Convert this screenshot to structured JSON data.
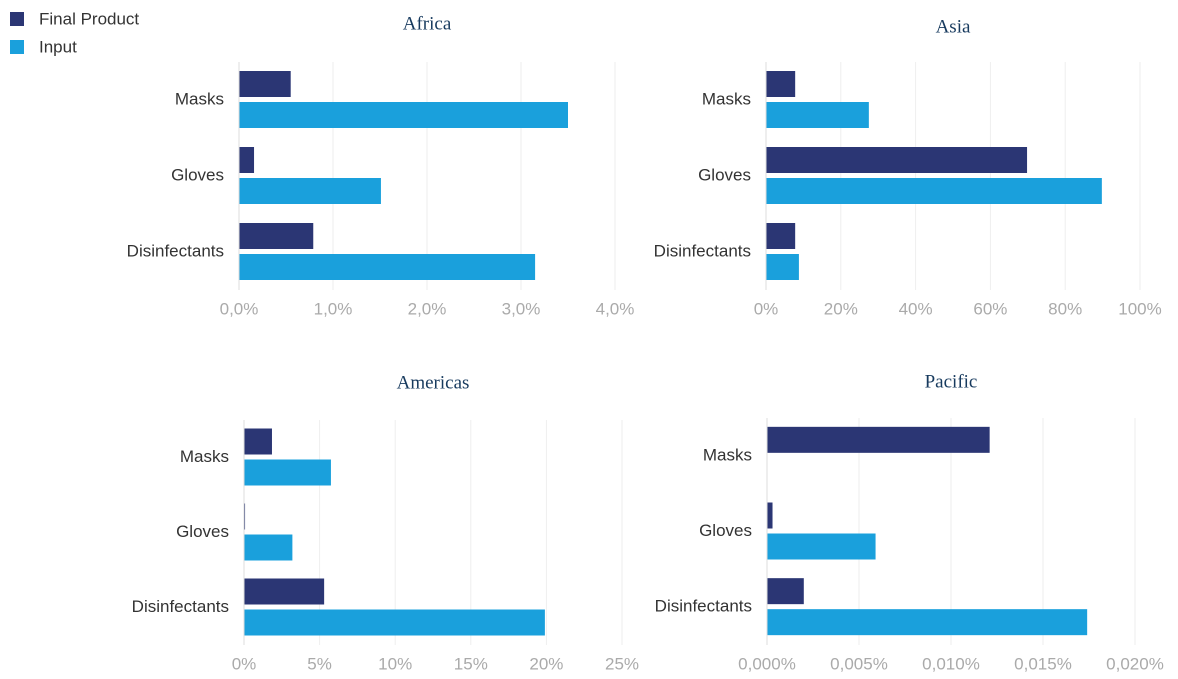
{
  "chart_data": [
    {
      "type": "hbar",
      "title": "Africa",
      "categories": [
        "Masks",
        "Gloves",
        "Disinfectants"
      ],
      "series": [
        {
          "name": "Final Product",
          "color": "#2b3674",
          "values": [
            0.55,
            0.16,
            0.79
          ]
        },
        {
          "name": "Input",
          "color": "#1aa0dc",
          "values": [
            3.5,
            1.51,
            3.15
          ]
        }
      ],
      "xlim": [
        0,
        4
      ],
      "xticks": [
        {
          "value": 0,
          "label": "0,0%"
        },
        {
          "value": 1,
          "label": "1,0%"
        },
        {
          "value": 2,
          "label": "2,0%"
        },
        {
          "value": 3,
          "label": "3,0%"
        },
        {
          "value": 4,
          "label": "4,0%"
        }
      ],
      "grid": true
    },
    {
      "type": "hbar",
      "title": "Asia",
      "categories": [
        "Masks",
        "Gloves",
        "Disinfectants"
      ],
      "series": [
        {
          "name": "Final Product",
          "color": "#2b3674",
          "values": [
            7.8,
            69.8,
            7.8
          ]
        },
        {
          "name": "Input",
          "color": "#1aa0dc",
          "values": [
            27.5,
            89.8,
            8.8
          ]
        }
      ],
      "xlim": [
        0,
        100
      ],
      "xticks": [
        {
          "value": 0,
          "label": "0%"
        },
        {
          "value": 20,
          "label": "20%"
        },
        {
          "value": 40,
          "label": "40%"
        },
        {
          "value": 60,
          "label": "60%"
        },
        {
          "value": 80,
          "label": "80%"
        },
        {
          "value": 100,
          "label": "100%"
        }
      ],
      "grid": true
    },
    {
      "type": "hbar",
      "title": "Americas",
      "categories": [
        "Masks",
        "Gloves",
        "Disinfectants"
      ],
      "series": [
        {
          "name": "Final Product",
          "color": "#2b3674",
          "values": [
            1.85,
            0.07,
            5.3
          ]
        },
        {
          "name": "Input",
          "color": "#1aa0dc",
          "values": [
            5.75,
            3.2,
            19.9
          ]
        }
      ],
      "xlim": [
        0,
        25
      ],
      "xticks": [
        {
          "value": 0,
          "label": "0%"
        },
        {
          "value": 5,
          "label": "5%"
        },
        {
          "value": 10,
          "label": "10%"
        },
        {
          "value": 15,
          "label": "15%"
        },
        {
          "value": 20,
          "label": "20%"
        },
        {
          "value": 25,
          "label": "25%"
        }
      ],
      "grid": true
    },
    {
      "type": "hbar",
      "title": "Pacific",
      "categories": [
        "Masks",
        "Gloves",
        "Disinfectants"
      ],
      "series": [
        {
          "name": "Final Product",
          "color": "#2b3674",
          "values": [
            0.0121,
            0.0003,
            0.002
          ]
        },
        {
          "name": "Input",
          "color": "#1aa0dc",
          "values": [
            0,
            0.0059,
            0.0174
          ]
        }
      ],
      "xlim": [
        0,
        0.02
      ],
      "xticks": [
        {
          "value": 0,
          "label": "0,000%"
        },
        {
          "value": 0.005,
          "label": "0,005%"
        },
        {
          "value": 0.01,
          "label": "0,010%"
        },
        {
          "value": 0.015,
          "label": "0,015%"
        },
        {
          "value": 0.02,
          "label": "0,020%"
        }
      ],
      "grid": true
    }
  ]
}
